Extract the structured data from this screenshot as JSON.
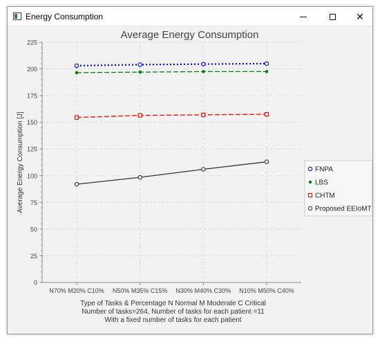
{
  "window": {
    "title": "Energy Consumption"
  },
  "window_controls": {
    "minimize_icon": "minimize-icon",
    "maximize_icon": "maximize-icon",
    "close_icon": "close-icon",
    "close_glyph": "✕"
  },
  "chart_data": {
    "type": "line",
    "title": "Average Energy Consumption",
    "ylabel": "Average Energy Consumption [J]",
    "xlabel_lines": [
      "Type of Tasks & Percentage      N Normal M Moderate C Critical",
      "Number of tasks=264,  Number of tasks for each patient =11",
      "With a fixed number of tasks for each patient"
    ],
    "categories": [
      "N70% M20% C10%",
      "N50% M35% C15%",
      "N30% M40% C30%",
      "N10% M50% C40%"
    ],
    "ylim": [
      0,
      225
    ],
    "yticks": [
      0,
      25,
      50,
      75,
      100,
      125,
      150,
      175,
      200,
      225
    ],
    "grid": true,
    "legend_position": "right",
    "series": [
      {
        "name": "FNPA",
        "values": [
          203,
          204,
          204.5,
          205
        ],
        "color": "#0000ff",
        "marker": "circle",
        "line": "dotted"
      },
      {
        "name": "LBS",
        "values": [
          196.5,
          197,
          197.5,
          197.5
        ],
        "color": "#008000",
        "marker": "dot",
        "line": "dashed"
      },
      {
        "name": "CHTM",
        "values": [
          154.5,
          156.5,
          157,
          157.5
        ],
        "color": "#ff0000",
        "marker": "square",
        "line": "dashed"
      },
      {
        "name": "Proposed EEIoMT",
        "values": [
          92,
          98.5,
          106,
          113
        ],
        "color": "#333333",
        "marker": "circle",
        "line": "solid"
      }
    ]
  }
}
